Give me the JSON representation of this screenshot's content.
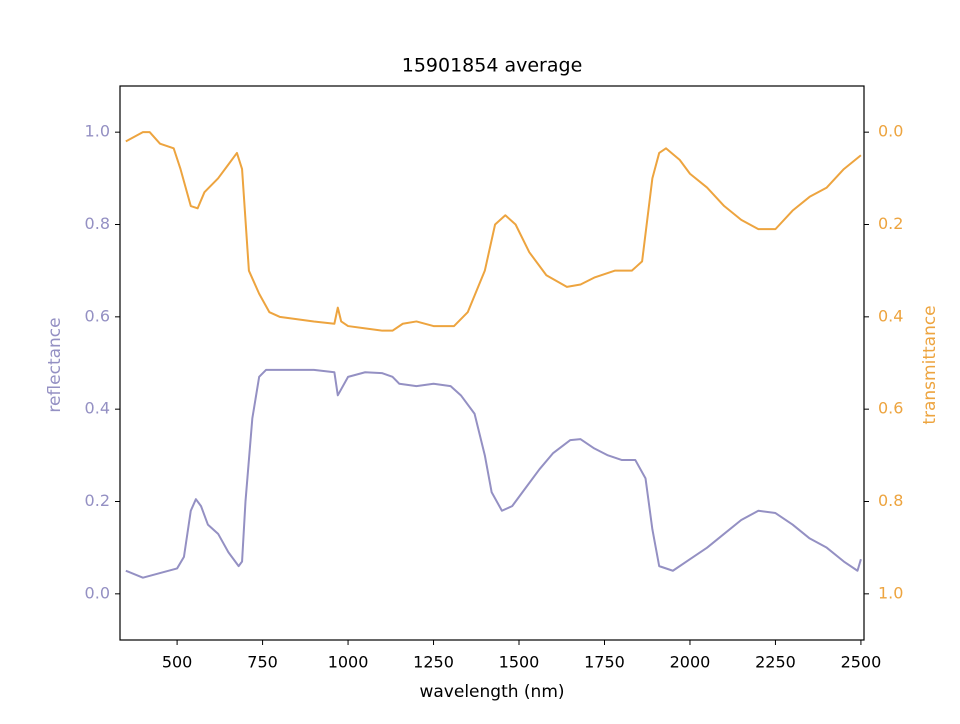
{
  "chart_data": {
    "type": "line",
    "title": "15901854 average",
    "x_label": "wavelength (nm)",
    "y_label": "reflectance",
    "y2_label": "transmittance",
    "xlim": [
      333,
      2509
    ],
    "xticks": [
      500,
      750,
      1000,
      1250,
      1500,
      1750,
      2000,
      2250,
      2500
    ],
    "ylim": [
      -0.1,
      1.1
    ],
    "yticks": [
      {
        "value": 0,
        "label": "0.0"
      },
      0.2,
      0.4,
      0.6,
      0.8,
      {
        "value": 1,
        "label": "1.0"
      }
    ],
    "y2lim": [
      1.1,
      -0.1
    ],
    "y2ticks": [
      {
        "value": 0,
        "label": "0.0"
      },
      0.2,
      0.4,
      0.6,
      0.8,
      {
        "value": 1,
        "label": "1.0"
      }
    ],
    "series": [
      {
        "name": "reflectance",
        "color": "#9490c3",
        "x": [
          350,
          400,
          450,
          500,
          520,
          540,
          555,
          570,
          590,
          620,
          650,
          680,
          690,
          700,
          720,
          740,
          760,
          800,
          900,
          960,
          970,
          1000,
          1050,
          1100,
          1130,
          1150,
          1200,
          1250,
          1300,
          1330,
          1370,
          1400,
          1420,
          1450,
          1480,
          1520,
          1560,
          1600,
          1650,
          1680,
          1720,
          1760,
          1800,
          1840,
          1870,
          1890,
          1900,
          1910,
          1950,
          2000,
          2050,
          2100,
          2150,
          2200,
          2250,
          2300,
          2350,
          2400,
          2450,
          2490,
          2500
        ],
        "values": [
          0.05,
          0.035,
          0.045,
          0.055,
          0.08,
          0.18,
          0.205,
          0.19,
          0.15,
          0.13,
          0.09,
          0.06,
          0.07,
          0.2,
          0.38,
          0.47,
          0.485,
          0.485,
          0.485,
          0.48,
          0.43,
          0.47,
          0.48,
          0.478,
          0.47,
          0.455,
          0.45,
          0.455,
          0.45,
          0.43,
          0.39,
          0.3,
          0.22,
          0.18,
          0.19,
          0.23,
          0.27,
          0.305,
          0.333,
          0.335,
          0.315,
          0.3,
          0.29,
          0.29,
          0.25,
          0.14,
          0.1,
          0.06,
          0.05,
          0.075,
          0.1,
          0.13,
          0.16,
          0.18,
          0.175,
          0.15,
          0.12,
          0.1,
          0.07,
          0.05,
          0.075
        ]
      },
      {
        "name": "transmittance",
        "color": "#eda43f",
        "axis": "y2",
        "x": [
          350,
          400,
          420,
          450,
          490,
          510,
          540,
          560,
          580,
          620,
          650,
          675,
          690,
          710,
          740,
          770,
          800,
          900,
          960,
          970,
          980,
          1000,
          1050,
          1100,
          1130,
          1160,
          1200,
          1250,
          1310,
          1350,
          1400,
          1430,
          1460,
          1490,
          1530,
          1580,
          1640,
          1680,
          1720,
          1780,
          1830,
          1860,
          1890,
          1910,
          1930,
          1970,
          2000,
          2050,
          2100,
          2150,
          2200,
          2250,
          2300,
          2350,
          2400,
          2450,
          2500
        ],
        "values": [
          0.02,
          0.0,
          0.0,
          0.025,
          0.035,
          0.08,
          0.16,
          0.165,
          0.13,
          0.1,
          0.07,
          0.045,
          0.08,
          0.3,
          0.35,
          0.39,
          0.4,
          0.41,
          0.415,
          0.38,
          0.41,
          0.42,
          0.425,
          0.43,
          0.43,
          0.415,
          0.41,
          0.42,
          0.42,
          0.39,
          0.3,
          0.2,
          0.18,
          0.2,
          0.26,
          0.31,
          0.335,
          0.33,
          0.315,
          0.3,
          0.3,
          0.28,
          0.1,
          0.045,
          0.035,
          0.06,
          0.09,
          0.12,
          0.16,
          0.19,
          0.21,
          0.21,
          0.17,
          0.14,
          0.12,
          0.08,
          0.05
        ]
      }
    ]
  }
}
